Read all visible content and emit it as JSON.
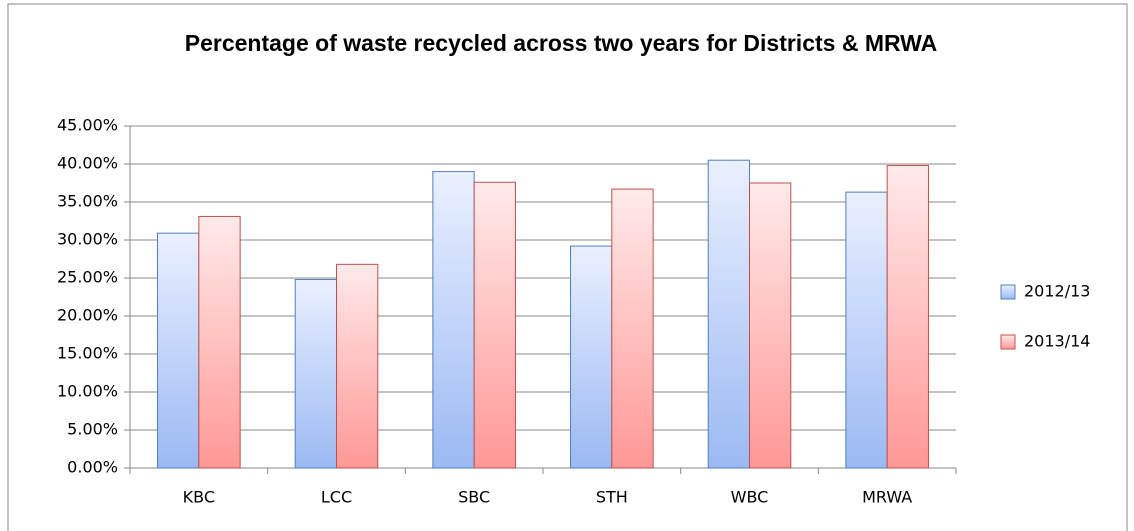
{
  "chart_data": {
    "type": "bar",
    "title": "Percentage of waste recycled across two years for Districts & MRWA",
    "categories": [
      "KBC",
      "LCC",
      "SBC",
      "STH",
      "WBC",
      "MRWA"
    ],
    "series": [
      {
        "name": "2012/13",
        "color": "#4f81bd",
        "values": [
          30.9,
          24.8,
          39.0,
          29.2,
          40.5,
          36.3
        ]
      },
      {
        "name": "2013/14",
        "color": "#c0504d",
        "values": [
          33.1,
          26.8,
          37.6,
          36.7,
          37.5,
          39.8
        ]
      }
    ],
    "ylim": [
      0,
      45
    ],
    "yticks": [
      {
        "value": 0,
        "label": "0.00%"
      },
      {
        "value": 5,
        "label": "5.00%"
      },
      {
        "value": 10,
        "label": "10.00%"
      },
      {
        "value": 15,
        "label": "15.00%"
      },
      {
        "value": 20,
        "label": "20.00%"
      },
      {
        "value": 25,
        "label": "25.00%"
      },
      {
        "value": 30,
        "label": "30.00%"
      },
      {
        "value": 35,
        "label": "35.00%"
      },
      {
        "value": 40,
        "label": "40.00%"
      },
      {
        "value": 45,
        "label": "45.00%"
      }
    ],
    "grid": true,
    "legend": "right"
  }
}
